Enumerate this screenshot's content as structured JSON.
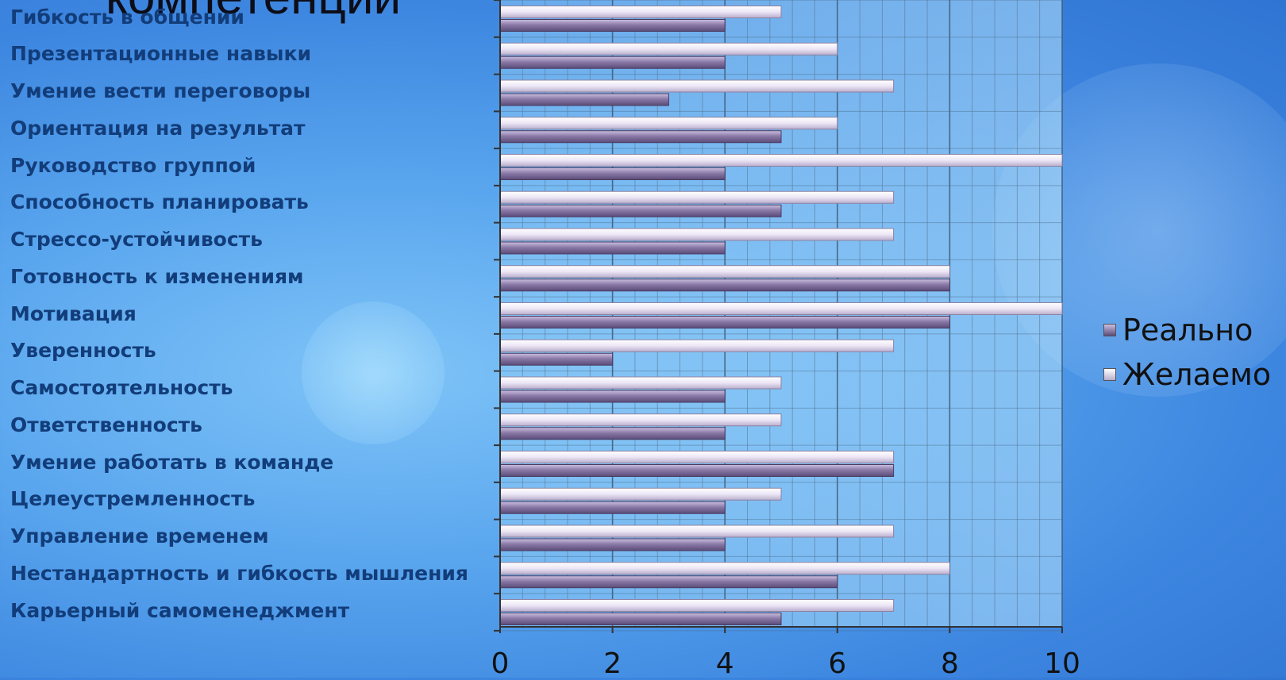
{
  "title": "компетенций",
  "chart_data": {
    "type": "bar",
    "orientation": "horizontal",
    "categories": [
      "Гибкость в общении",
      "Презентационные навыки",
      "Умение вести переговоры",
      "Ориентация на результат",
      "Руководство группой",
      "Способность планировать",
      "Стрессо-устойчивость",
      "Готовность к изменениям",
      "Мотивация",
      "Уверенность",
      "Самостоятельность",
      "Ответственность",
      "Умение работать в команде",
      "Целеустремленность",
      "Управление временем",
      "Нестандартность и гибкость мышления",
      "Карьерный самоменеджмент"
    ],
    "series": [
      {
        "name": "Реально",
        "color": "#7a6a96",
        "values": [
          4,
          4,
          3,
          5,
          4,
          5,
          4,
          8,
          8,
          2,
          4,
          4,
          7,
          4,
          4,
          6,
          5
        ]
      },
      {
        "name": "Желаемо",
        "color": "#e8e2f2",
        "values": [
          5,
          6,
          7,
          6,
          10,
          7,
          7,
          8,
          10,
          7,
          5,
          5,
          7,
          5,
          7,
          8,
          7
        ]
      }
    ],
    "xlim": [
      0,
      10
    ],
    "xticks": [
      "0",
      "2",
      "4",
      "6",
      "8",
      "10"
    ],
    "grid": true,
    "legend": "right"
  }
}
